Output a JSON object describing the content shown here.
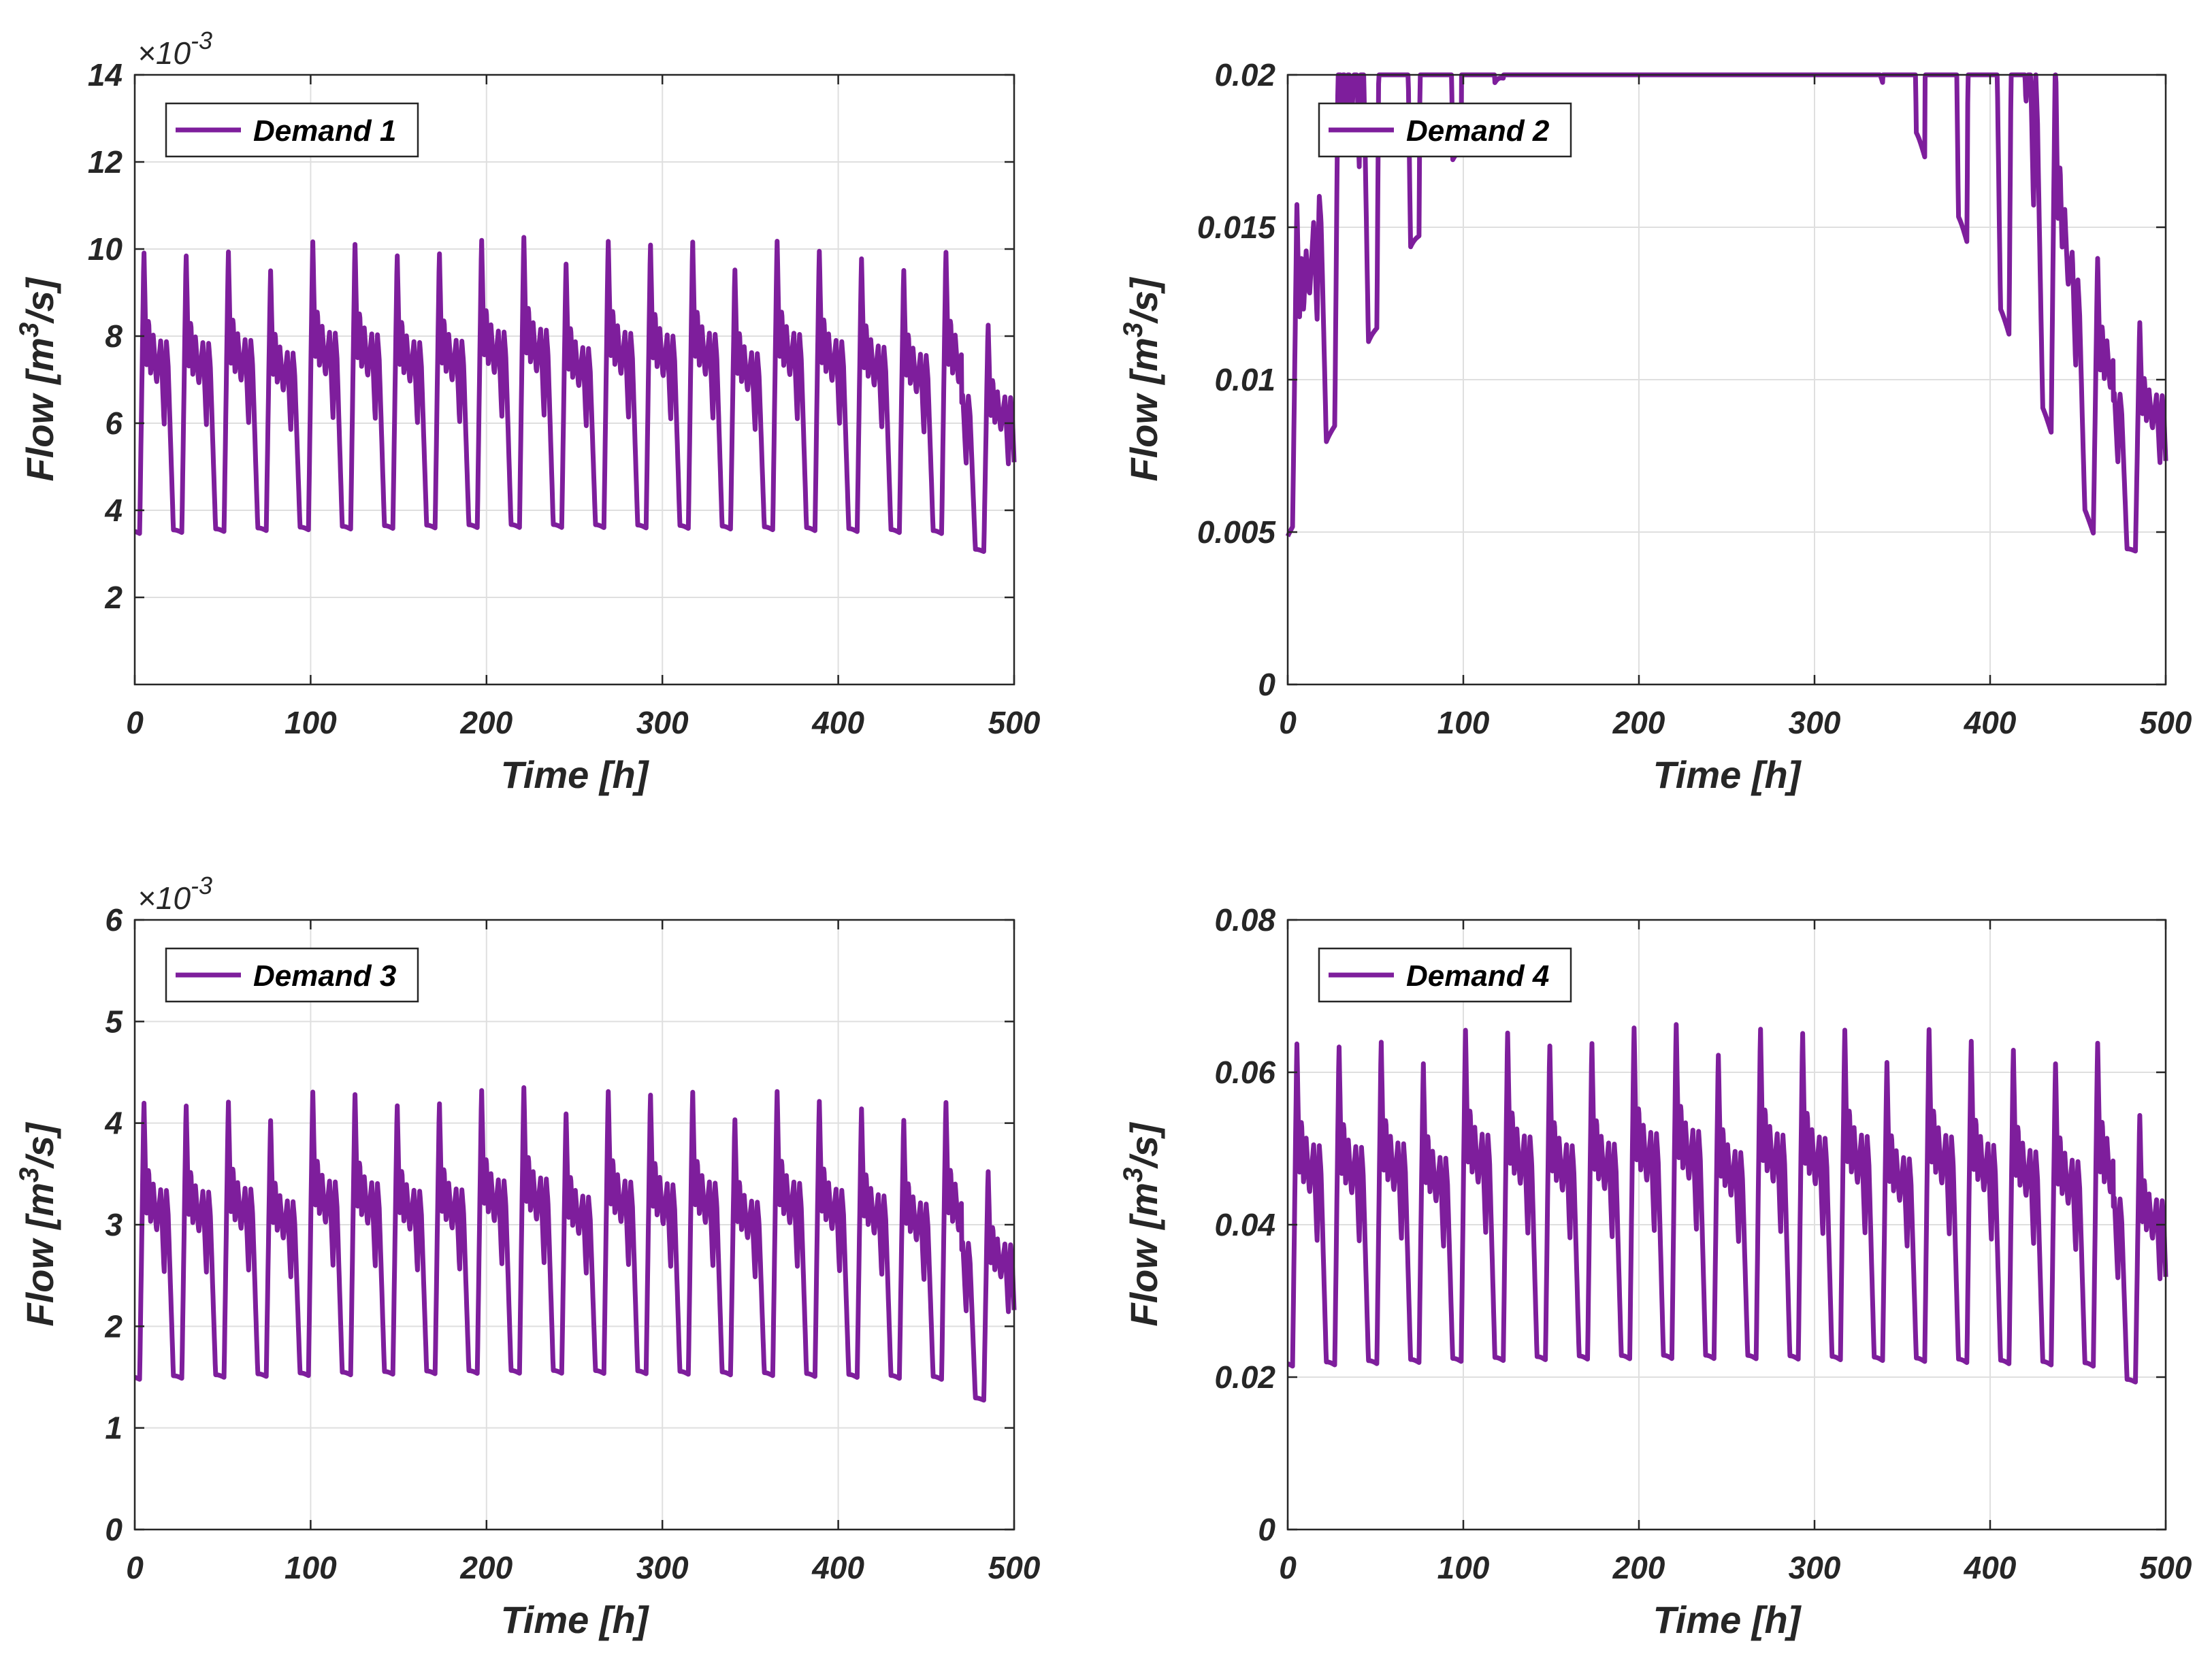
{
  "chart_data": [
    {
      "type": "line",
      "xlabel": "Time [h]",
      "ylabel": {
        "main": "Flow [m",
        "sup": "3",
        "tail": "/s]"
      },
      "xlim": [
        0,
        500
      ],
      "ylim": [
        0,
        14
      ],
      "xticks": [
        0,
        100,
        200,
        300,
        400,
        500
      ],
      "xtick_labels": [
        "0",
        "100",
        "200",
        "300",
        "400",
        "500"
      ],
      "yticks": [
        2,
        4,
        6,
        8,
        10,
        12,
        14
      ],
      "ytick_labels": [
        "2",
        "4",
        "6",
        "8",
        "10",
        "12",
        "14"
      ],
      "exponent": {
        "prefix": "×10",
        "power": "-3"
      },
      "grid": true,
      "legend_position": "top-left",
      "color": "#7E1E9C",
      "series": [
        {
          "name": "Demand 1",
          "min": 3.4,
          "peak": 9.8,
          "trend": 0.35,
          "last_peak": 8.2,
          "last_min": 3.0
        }
      ]
    },
    {
      "type": "line",
      "xlabel": "Time [h]",
      "ylabel": {
        "main": "Flow [m",
        "sup": "3",
        "tail": "/s]"
      },
      "xlim": [
        0,
        500
      ],
      "ylim": [
        0,
        0.02
      ],
      "xticks": [
        0,
        100,
        200,
        300,
        400,
        500
      ],
      "xtick_labels": [
        "0",
        "100",
        "200",
        "300",
        "400",
        "500"
      ],
      "yticks": [
        0,
        0.005,
        0.01,
        0.015,
        0.02
      ],
      "ytick_labels": [
        "0",
        "0.005",
        "0.01",
        "0.015",
        "0.02"
      ],
      "exponent": null,
      "grid": true,
      "legend_position": "top-left",
      "color": "#7E1E9C",
      "series": [
        {
          "name": "Demand 2",
          "min": 0.0047,
          "peak": 0.0138,
          "trend": 0.05,
          "last_peak": 0.0118,
          "last_min": 0.0043
        }
      ]
    },
    {
      "type": "line",
      "xlabel": "Time [h]",
      "ylabel": {
        "main": "Flow [m",
        "sup": "3",
        "tail": "/s]"
      },
      "xlim": [
        0,
        500
      ],
      "ylim": [
        0,
        6
      ],
      "xticks": [
        0,
        100,
        200,
        300,
        400,
        500
      ],
      "xtick_labels": [
        "0",
        "100",
        "200",
        "300",
        "400",
        "500"
      ],
      "yticks": [
        0,
        1,
        2,
        3,
        4,
        5,
        6
      ],
      "ytick_labels": [
        "0",
        "1",
        "2",
        "3",
        "4",
        "5",
        "6"
      ],
      "exponent": {
        "prefix": "×10",
        "power": "-3"
      },
      "grid": true,
      "legend_position": "top-left",
      "color": "#7E1E9C",
      "series": [
        {
          "name": "Demand 3",
          "min": 1.45,
          "peak": 4.15,
          "trend": 0.15,
          "last_peak": 3.5,
          "last_min": 1.25
        }
      ]
    },
    {
      "type": "line",
      "xlabel": "Time [h]",
      "ylabel": {
        "main": "Flow [m",
        "sup": "3",
        "tail": "/s]"
      },
      "xlim": [
        0,
        500
      ],
      "ylim": [
        0,
        0.08
      ],
      "xticks": [
        0,
        100,
        200,
        300,
        400,
        500
      ],
      "xtick_labels": [
        "0",
        "100",
        "200",
        "300",
        "400",
        "500"
      ],
      "yticks": [
        0,
        0.02,
        0.04,
        0.06,
        0.08
      ],
      "ytick_labels": [
        "0",
        "0.02",
        "0.04",
        "0.06",
        "0.08"
      ],
      "exponent": null,
      "grid": true,
      "legend_position": "top-left",
      "color": "#7E1E9C",
      "series": [
        {
          "name": "Demand 4",
          "min": 0.021,
          "peak": 0.063,
          "trend": 0.0025,
          "last_peak": 0.054,
          "last_min": 0.019
        }
      ]
    }
  ]
}
